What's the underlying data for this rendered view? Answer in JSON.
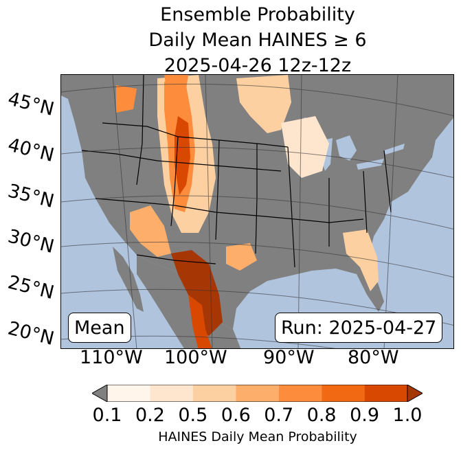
{
  "title": {
    "line1": "Ensemble Probability",
    "line2": "Daily Mean HAINES ≥ 6",
    "line3": "2025-04-26 12z-12z"
  },
  "map": {
    "lat_labels": [
      "45°N",
      "40°N",
      "35°N",
      "30°N",
      "25°N",
      "20°N"
    ],
    "lon_labels": [
      "110°W",
      "100°W",
      "90°W",
      "80°W"
    ],
    "ocean_color": "#b0c4de",
    "land_color": "#808080"
  },
  "labels": {
    "statistic": "Mean",
    "run": "Run: 2025-04-27"
  },
  "colorbar": {
    "ticks": [
      "0.1",
      "0.2",
      "0.5",
      "0.6",
      "0.7",
      "0.8",
      "0.9",
      "1.0"
    ],
    "colors": [
      "#fff5eb",
      "#fee6ce",
      "#fdd0a2",
      "#fdae6b",
      "#fd8d3c",
      "#f16913",
      "#d94801"
    ],
    "under_color": "#808080",
    "over_color": "#a63603",
    "label": "HAINES Daily Mean Probability"
  }
}
